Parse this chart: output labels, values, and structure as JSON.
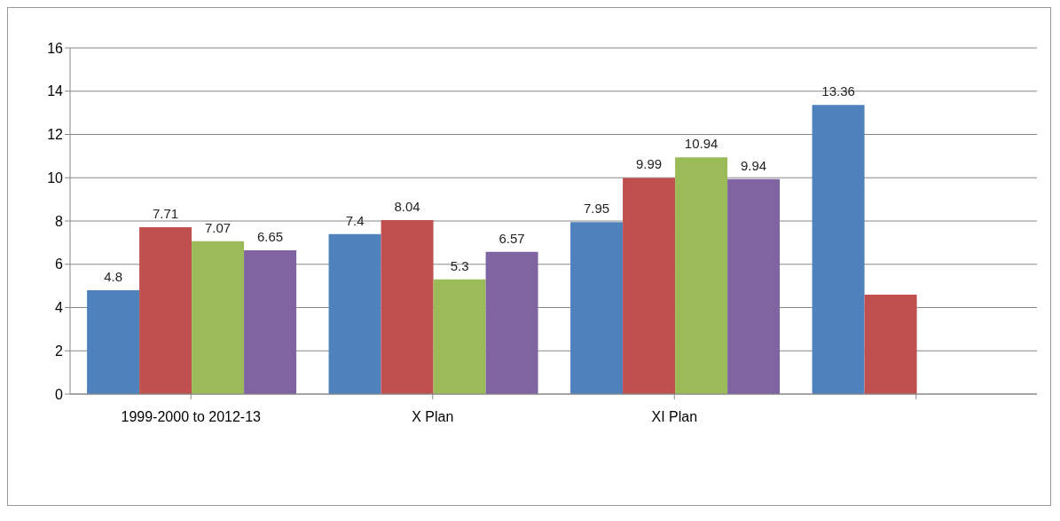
{
  "chart_data": {
    "type": "bar",
    "categories": [
      "1999-2000 to 2012-13",
      "X Plan",
      "XI Plan",
      null
    ],
    "series": [
      {
        "color": "#4f81bd",
        "values": [
          4.8,
          7.4,
          7.95,
          13.36
        ],
        "value_labels": [
          "4.8",
          "7.4",
          "7.95",
          "13.36"
        ]
      },
      {
        "color": "#c0504d",
        "values": [
          7.71,
          8.04,
          9.99,
          4.6
        ],
        "value_labels": [
          "7.71",
          "8.04",
          "9.99",
          null
        ]
      },
      {
        "color": "#9bbb59",
        "values": [
          7.07,
          5.3,
          10.94,
          null
        ],
        "value_labels": [
          "7.07",
          "5.3",
          "10.94",
          null
        ]
      },
      {
        "color": "#8064a2",
        "values": [
          6.65,
          6.57,
          9.94,
          null
        ],
        "value_labels": [
          "6.65",
          "6.57",
          "9.94",
          null
        ]
      }
    ],
    "ylim": [
      0,
      16
    ],
    "yticks": [
      0,
      2,
      4,
      6,
      8,
      10,
      12,
      14,
      16
    ],
    "grid": "y",
    "legend": false
  }
}
